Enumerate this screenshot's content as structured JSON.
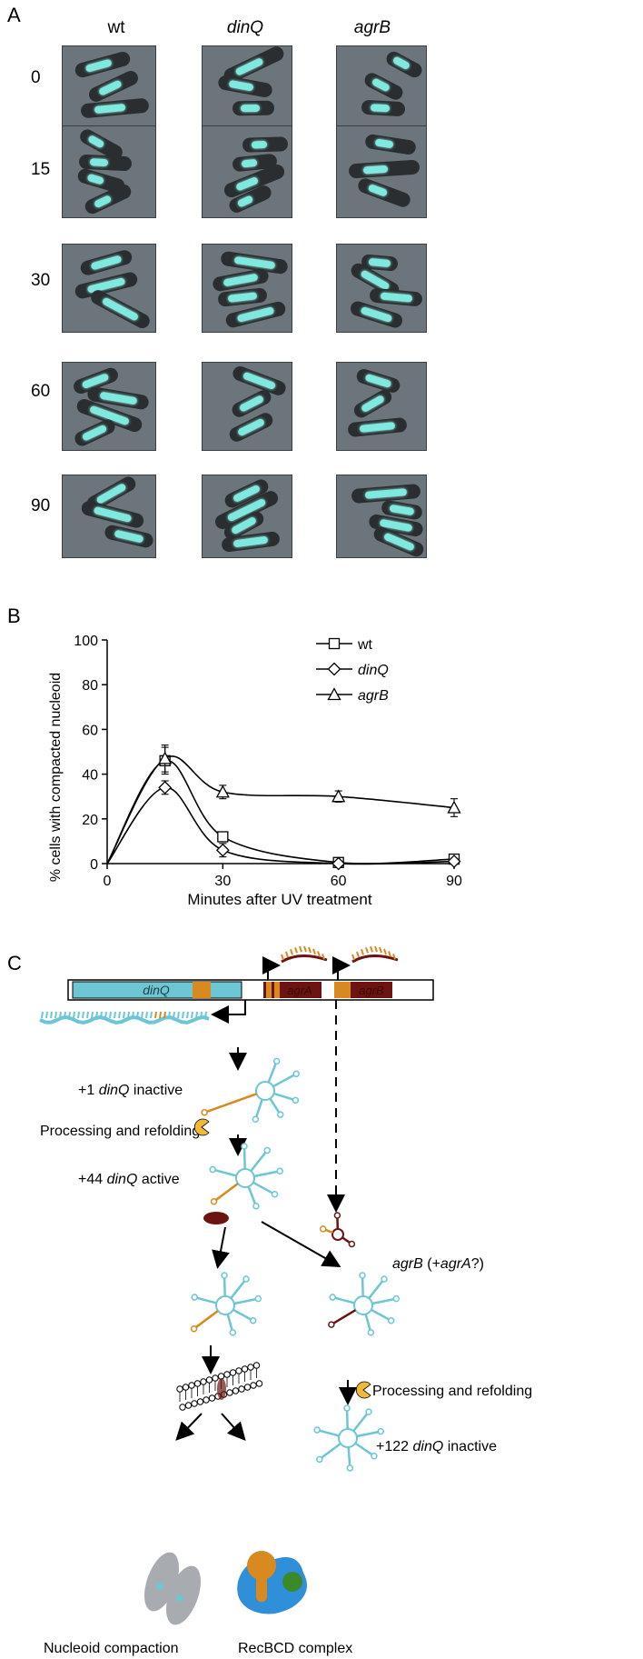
{
  "panelA": {
    "letter": "A",
    "columns": [
      {
        "label": "wt",
        "italic": false
      },
      {
        "label": "dinQ",
        "italic": true
      },
      {
        "label": "agrB",
        "italic": true
      }
    ],
    "rows": [
      "0",
      "15",
      "30",
      "60",
      "90"
    ],
    "colors": {
      "background": "#6c757b",
      "cell": "#2a2e30",
      "nucleoid": "#7fe8df"
    }
  },
  "panelB": {
    "letter": "B"
  },
  "chart_data": {
    "type": "line",
    "xlabel": "Minutes after UV treatment",
    "ylabel": "% cells with compacted nucleoid",
    "xlim": [
      0,
      90
    ],
    "ylim": [
      0,
      100
    ],
    "xticks": [
      0,
      30,
      60,
      90
    ],
    "yticks": [
      0,
      20,
      40,
      60,
      80,
      100
    ],
    "grid": false,
    "legend": "top-right",
    "series": [
      {
        "name": "wt",
        "marker": "square",
        "x": [
          0,
          15,
          30,
          60,
          90
        ],
        "y": [
          0,
          46,
          12,
          0.5,
          2
        ],
        "err": [
          0,
          6,
          2,
          0.5,
          1
        ]
      },
      {
        "name": "dinQ",
        "marker": "diamond",
        "x": [
          0,
          15,
          30,
          60,
          90
        ],
        "y": [
          0,
          34,
          6,
          0,
          1
        ],
        "err": [
          0,
          3,
          3,
          0,
          0.5
        ]
      },
      {
        "name": "agrB",
        "marker": "triangle",
        "x": [
          0,
          15,
          30,
          60,
          90
        ],
        "y": [
          0,
          47,
          32,
          30,
          25
        ],
        "err": [
          0,
          6,
          3,
          2.5,
          4
        ]
      }
    ]
  },
  "panelC": {
    "letter": "C",
    "genes": {
      "dinQ": "dinQ",
      "agrA": "agrA",
      "agrB": "agrB"
    },
    "steps": {
      "inactive1_prefix": "+1 ",
      "inactive1_gene": "dinQ",
      "inactive1_suffix": " inactive",
      "processing1": "Processing and refolding",
      "active_prefix": "+44 ",
      "active_gene": "dinQ",
      "active_suffix": " active",
      "agrB_gene": "agrB",
      "agrB_middle": " (+",
      "agrA_gene": "agrA",
      "agrB_suffix": "?)",
      "processing2": "Processing and refolding",
      "inactive122_prefix": "+122 ",
      "inactive122_gene": "dinQ",
      "inactive122_suffix": " inactive",
      "nucleoid": "Nucleoid compaction",
      "recbcd": "RecBCD complex"
    },
    "colors": {
      "dinq_rna": "#6cc6d4",
      "orange": "#d8891f",
      "dark_red": "#6b1412",
      "yellow": "#f1b83a"
    }
  }
}
